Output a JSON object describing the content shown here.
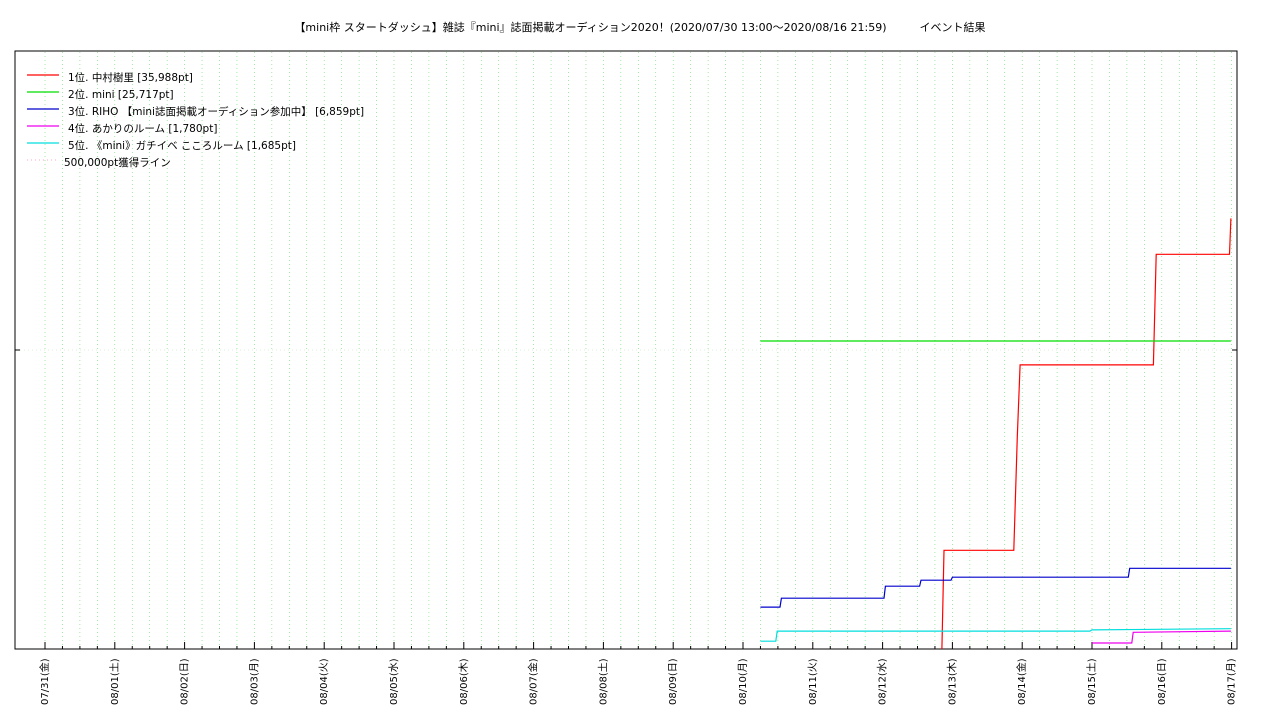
{
  "title": "【mini枠 スタートダッシュ】雑誌『mini』誌面掲載オーディション2020！(2020/07/30 13:00〜2020/08/16 21:59)　　　イベント結果",
  "chart_data": {
    "type": "line",
    "title": "【mini枠 スタートダッシュ】雑誌『mini』誌面掲載オーディション2020！(2020/07/30 13:00〜2020/08/16 21:59)　　　イベント結果",
    "xlabel": "",
    "ylabel": "",
    "x_unit": "days from 07/31 00:00",
    "xlim": [
      0,
      17
    ],
    "ylim": [
      0,
      100
    ],
    "y_note": "no y tick labels shown; values in relative units where 50 is the single unlabeled y tick",
    "x_tick_labels": [
      "07/31(金)",
      "08/01(土)",
      "08/02(日)",
      "08/03(月)",
      "08/04(火)",
      "08/05(水)",
      "08/06(木)",
      "08/07(金)",
      "08/08(土)",
      "08/09(日)",
      "08/10(月)",
      "08/11(火)",
      "08/12(水)",
      "08/13(木)",
      "08/14(金)",
      "08/15(土)",
      "08/16(日)",
      "08/17(月)"
    ],
    "grid": true,
    "legend_position": "top-left",
    "series": [
      {
        "name": "1位. 中村樹里 [35,988pt]",
        "color": "#ff0000",
        "points": [
          [
            12.85,
            0
          ],
          [
            12.88,
            16.5
          ],
          [
            13.88,
            16.5
          ],
          [
            13.93,
            35.5
          ],
          [
            13.97,
            47.5
          ],
          [
            15.88,
            47.5
          ],
          [
            15.92,
            66
          ],
          [
            16.97,
            66
          ],
          [
            16.99,
            72
          ]
        ]
      },
      {
        "name": "2位. mini [25,717pt]",
        "color": "#00dd00",
        "points": [
          [
            10.25,
            51.5
          ],
          [
            16.99,
            51.5
          ]
        ]
      },
      {
        "name": "3位. RIHO 【mini誌面掲載オーディション参加中】 [6,859pt]",
        "color": "#0000cc",
        "points": [
          [
            10.25,
            7
          ],
          [
            10.53,
            7
          ],
          [
            10.55,
            8.5
          ],
          [
            12.02,
            8.5
          ],
          [
            12.04,
            10.5
          ],
          [
            12.53,
            10.5
          ],
          [
            12.55,
            11.5
          ],
          [
            12.98,
            11.5
          ],
          [
            13.0,
            12
          ],
          [
            15.52,
            12
          ],
          [
            15.54,
            13.5
          ],
          [
            16.99,
            13.5
          ]
        ]
      },
      {
        "name": "4位. あかりのルーム [1,780pt]",
        "color": "#ee00ee",
        "points": [
          [
            15.0,
            1
          ],
          [
            15.57,
            1
          ],
          [
            15.59,
            2.8
          ],
          [
            16.99,
            3
          ]
        ]
      },
      {
        "name": "5位. 《mini》ガチイベ こころルーム [1,685pt]",
        "color": "#00dddd",
        "points": [
          [
            10.25,
            1.3
          ],
          [
            10.47,
            1.3
          ],
          [
            10.49,
            3
          ],
          [
            14.97,
            3
          ],
          [
            15.0,
            3.2
          ],
          [
            16.99,
            3.4
          ]
        ]
      },
      {
        "name": "500,000pt獲得ライン",
        "color": "#ff88aa",
        "style": "dotted",
        "points": []
      }
    ]
  }
}
